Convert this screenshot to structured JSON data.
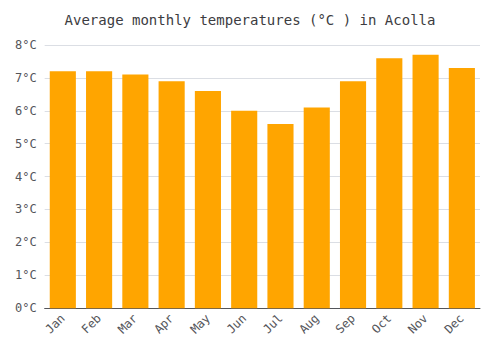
{
  "chart_data": {
    "type": "bar",
    "title": "Average monthly temperatures (°C ) in Acolla",
    "categories": [
      "Jan",
      "Feb",
      "Mar",
      "Apr",
      "May",
      "Jun",
      "Jul",
      "Aug",
      "Sep",
      "Oct",
      "Nov",
      "Dec"
    ],
    "values": [
      7.2,
      7.2,
      7.1,
      6.9,
      6.6,
      6.0,
      5.6,
      6.1,
      6.9,
      7.6,
      7.7,
      7.3
    ],
    "color": "#FFA500",
    "ylim": [
      0,
      8
    ],
    "yticks": [
      {
        "value": 0,
        "label": "0°C"
      },
      {
        "value": 1,
        "label": "1°C"
      },
      {
        "value": 2,
        "label": "2°C"
      },
      {
        "value": 3,
        "label": "3°C"
      },
      {
        "value": 4,
        "label": "4°C"
      },
      {
        "value": 5,
        "label": "5°C"
      },
      {
        "value": 6,
        "label": "6°C"
      },
      {
        "value": 7,
        "label": "7°C"
      },
      {
        "value": 8,
        "label": "8°C"
      }
    ],
    "grid": true
  }
}
